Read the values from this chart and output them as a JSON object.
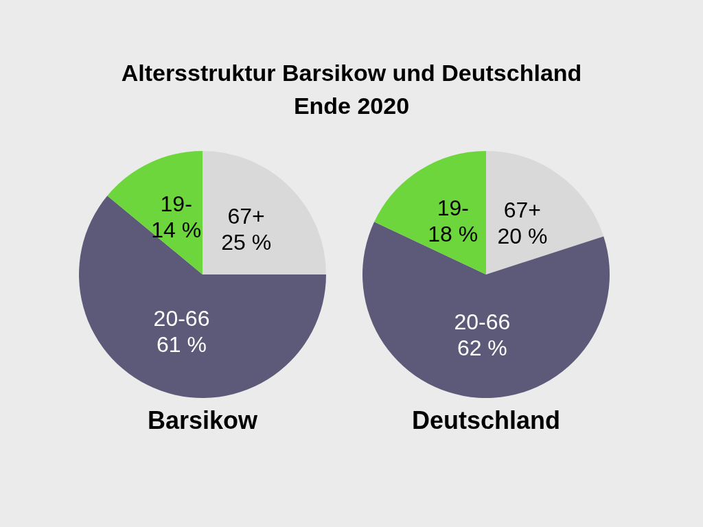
{
  "chart_data": [
    {
      "type": "other",
      "title": "Altersstruktur Barsikow und Deutschland\nEnde 2020"
    },
    {
      "type": "pie",
      "title": "Barsikow",
      "categories": [
        "67+",
        "20-66",
        "19-"
      ],
      "values": [
        25,
        61,
        14
      ],
      "value_labels": [
        "25 %",
        "61 %",
        "14 %"
      ],
      "colors": [
        "#d9d9d9",
        "#5c5a78",
        "#6cd63c"
      ]
    },
    {
      "type": "pie",
      "title": "Deutschland",
      "categories": [
        "67+",
        "20-66",
        "19-"
      ],
      "values": [
        20,
        62,
        18
      ],
      "value_labels": [
        "20 %",
        "62 %",
        "18 %"
      ],
      "colors": [
        "#d9d9d9",
        "#5c5a78",
        "#6cd63c"
      ]
    }
  ]
}
